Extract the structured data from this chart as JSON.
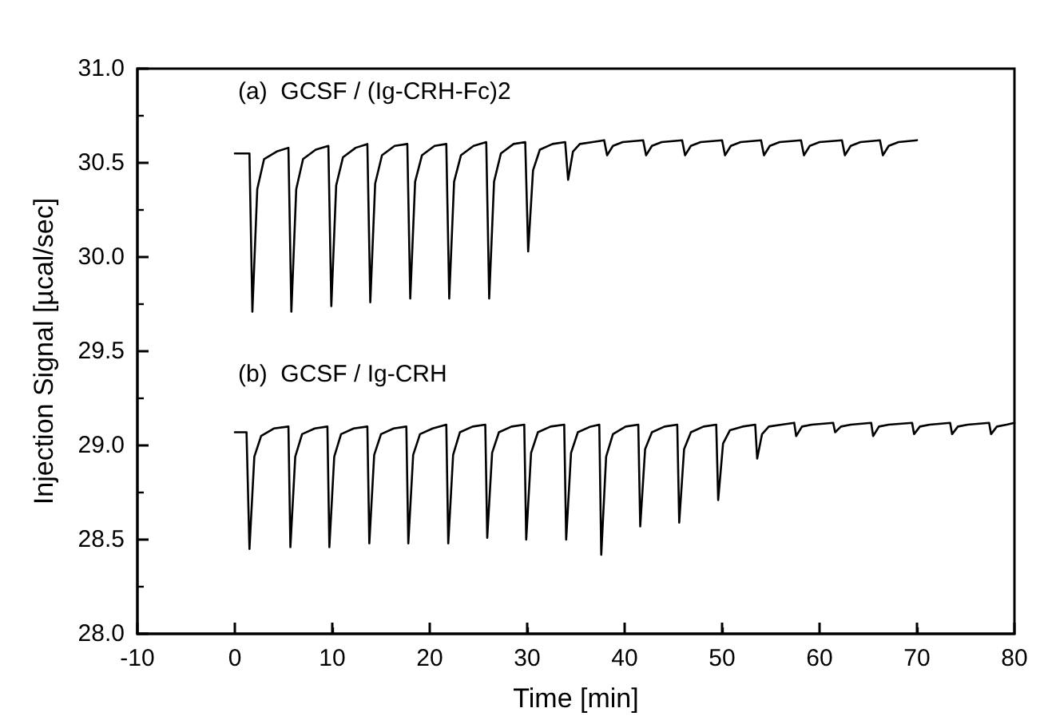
{
  "chart_data": {
    "type": "line",
    "xlabel": "Time [min]",
    "ylabel": "Injection Signal [µcal/sec]",
    "xlim": [
      -10,
      80
    ],
    "xticks": [
      -10,
      0,
      10,
      20,
      30,
      40,
      50,
      60,
      70,
      80
    ],
    "ylim": [
      28,
      31
    ],
    "yticks": [
      {
        "value": 28,
        "label": "28.0"
      },
      {
        "value": 28.5,
        "label": "28.5"
      },
      {
        "value": 29,
        "label": "29.0"
      },
      {
        "value": 29.5,
        "label": "29.5"
      },
      {
        "value": 30,
        "label": "30.0"
      },
      {
        "value": 30.5,
        "label": "30.5"
      },
      {
        "value": 31,
        "label": "31.0"
      }
    ],
    "marker": "none",
    "line_style": "solid",
    "series": [
      {
        "name": "(a)  GCSF / (Ig-CRH-Fc)2",
        "color": "#000000",
        "x": [
          0,
          1.5,
          1.8,
          2.3,
          3.0,
          4.3,
          5.5,
          5.8,
          6.3,
          7.0,
          8.3,
          9.6,
          9.9,
          10.4,
          11.1,
          12.4,
          13.6,
          13.9,
          14.4,
          15.1,
          16.4,
          17.7,
          18.0,
          18.5,
          19.2,
          20.5,
          21.7,
          22.0,
          22.5,
          23.2,
          24.5,
          25.8,
          26.1,
          26.6,
          27.3,
          28.6,
          29.8,
          30.1,
          30.6,
          31.3,
          32.6,
          33.9,
          34.2,
          34.7,
          35.4,
          36.7,
          37.9,
          38.2,
          38.8,
          39.8,
          41.9,
          42.2,
          42.8,
          43.8,
          45.9,
          46.2,
          46.8,
          47.8,
          50.0,
          50.3,
          50.9,
          51.9,
          54.0,
          54.3,
          54.9,
          55.9,
          58.1,
          58.4,
          59.0,
          60.0,
          62.3,
          62.6,
          63.2,
          64.2,
          66.2,
          66.5,
          67.1,
          68.1,
          70
        ],
        "values": [
          30.55,
          30.55,
          29.71,
          30.36,
          30.52,
          30.56,
          30.58,
          29.71,
          30.36,
          30.52,
          30.57,
          30.59,
          29.74,
          30.38,
          30.53,
          30.58,
          30.6,
          29.76,
          30.39,
          30.54,
          30.59,
          30.6,
          29.78,
          30.4,
          30.54,
          30.59,
          30.6,
          29.78,
          30.4,
          30.54,
          30.59,
          30.61,
          29.78,
          30.4,
          30.55,
          30.6,
          30.61,
          30.03,
          30.46,
          30.57,
          30.6,
          30.61,
          30.41,
          30.56,
          30.6,
          30.61,
          30.62,
          30.54,
          30.59,
          30.61,
          30.62,
          30.54,
          30.59,
          30.61,
          30.62,
          30.54,
          30.59,
          30.61,
          30.62,
          30.54,
          30.59,
          30.61,
          30.62,
          30.54,
          30.59,
          30.61,
          30.62,
          30.54,
          30.59,
          30.61,
          30.62,
          30.54,
          30.59,
          30.61,
          30.62,
          30.54,
          30.59,
          30.61,
          30.62
        ]
      },
      {
        "name": "(b)  GCSF / Ig-CRH",
        "color": "#000000",
        "x": [
          0,
          1.2,
          1.5,
          2.0,
          2.7,
          4.0,
          5.5,
          5.7,
          6.2,
          6.9,
          8.2,
          9.5,
          9.7,
          10.2,
          10.9,
          12.2,
          13.6,
          13.8,
          14.3,
          15.0,
          16.3,
          17.6,
          17.8,
          18.3,
          19.0,
          20.3,
          21.7,
          21.9,
          22.4,
          23.1,
          24.4,
          25.7,
          25.9,
          26.4,
          27.1,
          28.4,
          29.7,
          29.9,
          30.4,
          31.1,
          32.4,
          33.8,
          34.0,
          34.5,
          35.2,
          36.5,
          37.4,
          37.6,
          38.1,
          38.8,
          40.1,
          41.4,
          41.6,
          42.1,
          42.8,
          44.1,
          45.4,
          45.6,
          46.1,
          46.8,
          48.1,
          49.4,
          49.6,
          50.1,
          50.8,
          52.1,
          53.4,
          53.6,
          54.1,
          54.8,
          56.1,
          57.4,
          57.6,
          58.2,
          59.2,
          61.4,
          61.6,
          62.2,
          63.2,
          65.3,
          65.5,
          66.1,
          67.1,
          69.5,
          69.7,
          70.3,
          71.3,
          73.4,
          73.6,
          74.2,
          75.2,
          77.4,
          77.6,
          78.2,
          79.2,
          80
        ],
        "values": [
          29.07,
          29.07,
          28.45,
          28.94,
          29.05,
          29.09,
          29.1,
          28.46,
          28.94,
          29.06,
          29.09,
          29.1,
          28.46,
          28.94,
          29.06,
          29.09,
          29.1,
          28.48,
          28.95,
          29.06,
          29.09,
          29.1,
          28.48,
          28.95,
          29.06,
          29.09,
          29.11,
          28.48,
          28.95,
          29.07,
          29.1,
          29.11,
          28.51,
          28.96,
          29.07,
          29.1,
          29.11,
          28.5,
          28.96,
          29.07,
          29.1,
          29.11,
          28.5,
          28.96,
          29.07,
          29.1,
          29.11,
          28.42,
          28.94,
          29.06,
          29.1,
          29.11,
          28.57,
          28.98,
          29.07,
          29.1,
          29.11,
          28.59,
          28.98,
          29.07,
          29.1,
          29.11,
          28.71,
          29.01,
          29.08,
          29.1,
          29.11,
          28.93,
          29.06,
          29.1,
          29.11,
          29.12,
          29.05,
          29.1,
          29.11,
          29.12,
          29.07,
          29.1,
          29.11,
          29.12,
          29.05,
          29.1,
          29.11,
          29.12,
          29.06,
          29.1,
          29.11,
          29.12,
          29.06,
          29.1,
          29.11,
          29.12,
          29.06,
          29.1,
          29.11,
          29.12
        ]
      }
    ]
  }
}
